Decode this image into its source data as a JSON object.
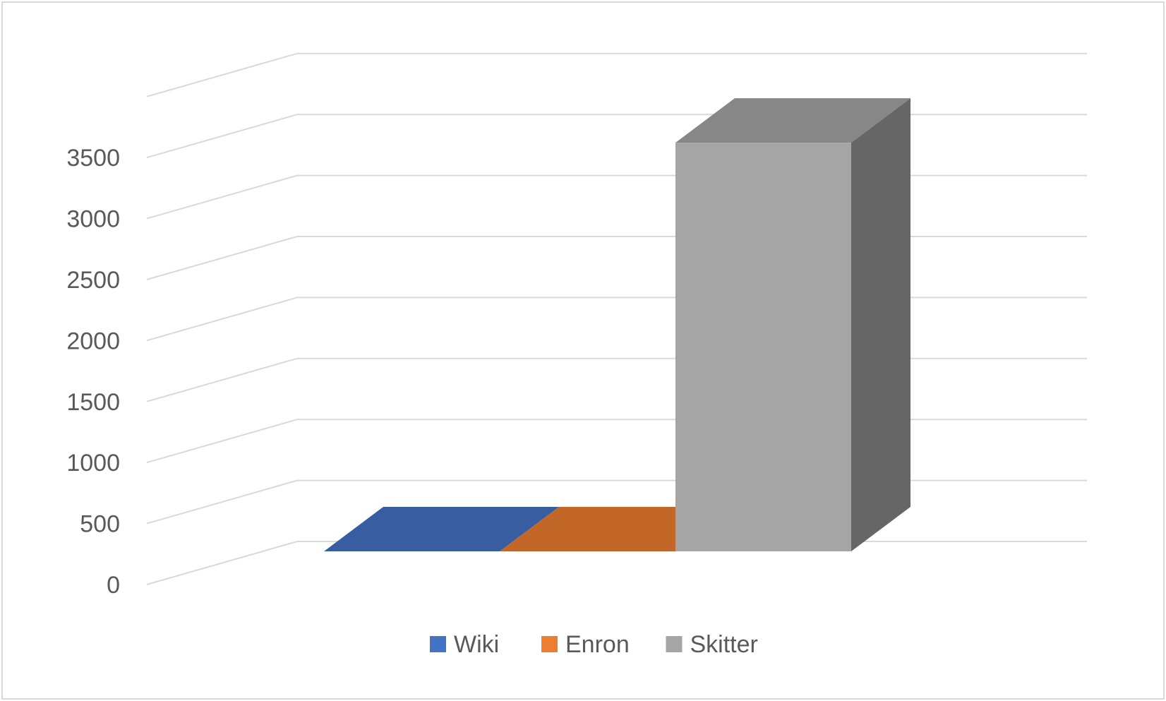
{
  "chart_data": {
    "type": "bar",
    "variant": "3d",
    "title": "",
    "xlabel": "",
    "ylabel": "",
    "ylim": [
      0,
      4000
    ],
    "yticks": [
      0,
      500,
      1000,
      1500,
      2000,
      2500,
      3000,
      3500
    ],
    "grid": true,
    "legend": "bottom",
    "series": [
      {
        "name": "Wiki",
        "values": [
          0
        ],
        "color": "#4472c4"
      },
      {
        "name": "Enron",
        "values": [
          0
        ],
        "color": "#ed7d31"
      },
      {
        "name": "Skitter",
        "values": [
          3350
        ],
        "color": "#a5a5a5"
      }
    ]
  }
}
